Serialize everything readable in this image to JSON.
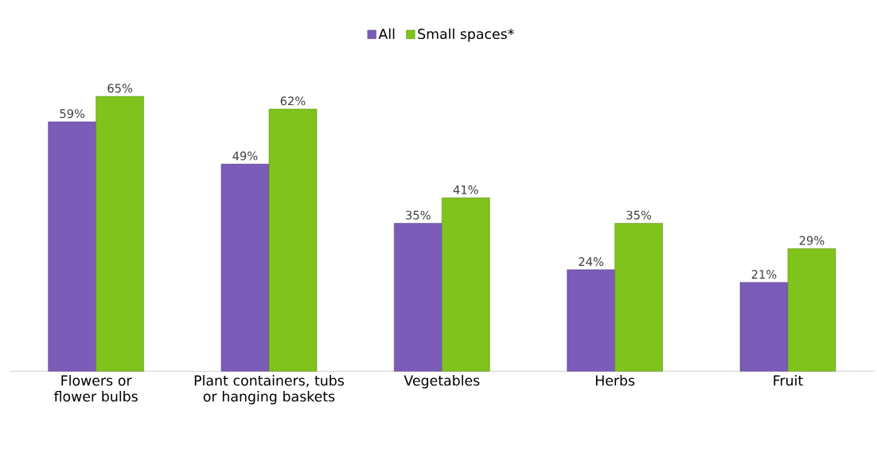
{
  "chart_data": {
    "type": "bar",
    "categories": [
      "Flowers or flower bulbs",
      "Plant containers, tubs or hanging baskets",
      "Vegetables",
      "Herbs",
      "Fruit"
    ],
    "series": [
      {
        "name": "All",
        "color": "#7b5cb8",
        "values": [
          59,
          49,
          35,
          24,
          21
        ],
        "value_labels": [
          "59%",
          "49%",
          "35%",
          "24%",
          "21%"
        ]
      },
      {
        "name": "Small spaces*",
        "color": "#7fc31c",
        "values": [
          65,
          62,
          41,
          35,
          29
        ],
        "value_labels": [
          "65%",
          "62%",
          "41%",
          "35%",
          "29%"
        ]
      }
    ],
    "legend": "top",
    "tick_labels": "x"
  }
}
